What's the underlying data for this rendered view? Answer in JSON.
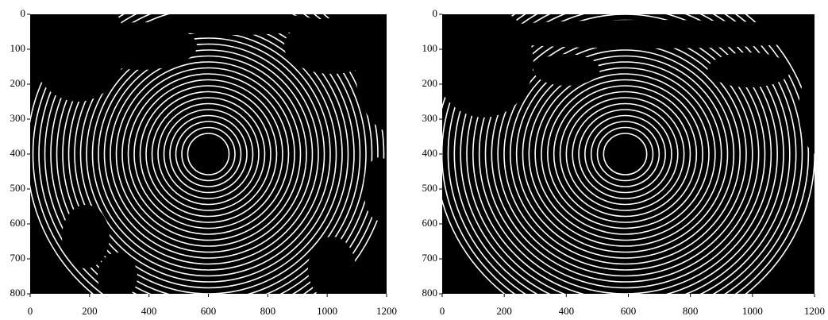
{
  "chart_data": [
    {
      "type": "image",
      "xlim": [
        0,
        1200
      ],
      "ylim": [
        800,
        0
      ],
      "xticks": [
        0,
        200,
        400,
        600,
        800,
        1000,
        1200
      ],
      "yticks": [
        0,
        100,
        200,
        300,
        400,
        500,
        600,
        700,
        800
      ]
    },
    {
      "type": "image",
      "xlim": [
        0,
        1200
      ],
      "ylim": [
        800,
        0
      ],
      "xticks": [
        0,
        200,
        400,
        600,
        800,
        1000,
        1200
      ],
      "yticks": [
        0,
        100,
        200,
        300,
        400,
        500,
        600,
        700,
        800
      ]
    }
  ]
}
